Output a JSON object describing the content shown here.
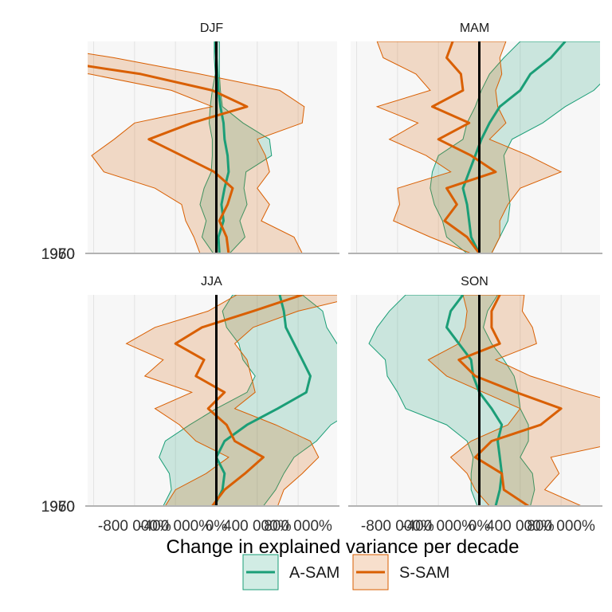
{
  "chart_data": {
    "type": "area",
    "xlabel": "Change in explained variance per decade",
    "ylabel": "",
    "xlim": [
      -800,
      800
    ],
    "ylim": [
      1950,
      2015
    ],
    "x_tick_values": [
      -800,
      -400,
      0,
      400,
      800
    ],
    "x_tick_labels": [
      "-800 000%",
      "-400 000%",
      "0%",
      "400 000%",
      "800 000%"
    ],
    "y_tick_values": [
      1950,
      1960,
      1970
    ],
    "y_tick_labels": [
      "1950",
      "1960",
      "1970"
    ],
    "grid": true,
    "legend_position": "bottom",
    "colors": {
      "A-SAM": "#1b9e77",
      "S-SAM": "#d95f02",
      "zero_line": "#000000",
      "panel_bg": "#f7f7f7",
      "grid": "#e3e3e3",
      "axis_line": "#b3b3b3"
    },
    "legend": [
      {
        "name": "A-SAM",
        "color": "#1b9e77"
      },
      {
        "name": "S-SAM",
        "color": "#d95f02"
      }
    ],
    "panels": [
      {
        "title": "DJF",
        "series": [
          {
            "name": "A-SAM",
            "years": [
              1950,
              1955,
              1960,
              1965,
              1970,
              1975,
              1980,
              1985,
              1990,
              1995,
              2000,
              2005,
              2010,
              2015
            ],
            "mid": [
              15,
              10,
              35,
              25,
              40,
              60,
              55,
              40,
              35,
              20,
              10,
              5,
              0,
              -5
            ],
            "lower": [
              -15,
              -70,
              -50,
              -80,
              -60,
              -25,
              -20,
              -20,
              -35,
              -30,
              -20,
              -5,
              -10,
              -10
            ],
            "upper": [
              65,
              140,
              115,
              150,
              135,
              145,
              270,
              260,
              130,
              30,
              20,
              15,
              15,
              15
            ]
          },
          {
            "name": "S-SAM",
            "years": [
              1950,
              1955,
              1960,
              1965,
              1970,
              1975,
              1980,
              1985,
              1990,
              1995,
              2000,
              2005,
              2010,
              2015
            ],
            "mid": [
              60,
              50,
              15,
              55,
              80,
              -10,
              -170,
              -330,
              -120,
              150,
              -20,
              -370,
              -900,
              -1300
            ],
            "lower": [
              -80,
              -110,
              -150,
              -170,
              -300,
              -550,
              -610,
              -500,
              -400,
              -20,
              -220,
              -620,
              -1200,
              -1600
            ],
            "upper": [
              420,
              380,
              220,
              260,
              200,
              260,
              240,
              200,
              420,
              430,
              310,
              -80,
              -500,
              -1000
            ]
          }
        ]
      },
      {
        "title": "MAM",
        "series": [
          {
            "name": "A-SAM",
            "years": [
              1950,
              1955,
              1960,
              1965,
              1970,
              1975,
              1980,
              1985,
              1990,
              1995,
              2000,
              2005,
              2010,
              2015
            ],
            "mid": [
              0,
              -40,
              -50,
              -60,
              -80,
              -50,
              -20,
              10,
              50,
              100,
              200,
              250,
              350,
              420
            ],
            "lower": [
              -60,
              -160,
              -180,
              -220,
              -240,
              -230,
              -200,
              -80,
              -60,
              -20,
              10,
              50,
              120,
              200
            ],
            "upper": [
              60,
              100,
              140,
              150,
              140,
              130,
              120,
              160,
              310,
              420,
              560,
              640,
              720,
              800
            ]
          },
          {
            "name": "S-SAM",
            "years": [
              1950,
              1955,
              1960,
              1965,
              1970,
              1975,
              1980,
              1985,
              1990,
              1995,
              2000,
              2005,
              2010,
              2015
            ],
            "mid": [
              0,
              -60,
              -170,
              -110,
              -160,
              80,
              -40,
              -200,
              -50,
              -230,
              -80,
              -90,
              -160,
              -130
            ],
            "lower": [
              -40,
              -240,
              -420,
              -390,
              -400,
              -140,
              -260,
              -440,
              -300,
              -500,
              -240,
              -310,
              -470,
              -500
            ],
            "upper": [
              60,
              100,
              100,
              140,
              200,
              400,
              240,
              50,
              130,
              90,
              80,
              110,
              100,
              130
            ]
          }
        ]
      },
      {
        "title": "JJA",
        "series": [
          {
            "name": "A-SAM",
            "years": [
              1950,
              1955,
              1960,
              1965,
              1970,
              1975,
              1980,
              1985,
              1990,
              1995,
              2000,
              2005,
              2010,
              2015
            ],
            "mid": [
              -10,
              30,
              40,
              0,
              40,
              150,
              300,
              440,
              460,
              420,
              380,
              340,
              330,
              310
            ],
            "lower": [
              -260,
              -220,
              -230,
              -280,
              -250,
              -130,
              0,
              150,
              190,
              130,
              110,
              50,
              30,
              80
            ],
            "upper": [
              230,
              290,
              330,
              380,
              490,
              560,
              690,
              800,
              710,
              660,
              590,
              540,
              520,
              420
            ]
          },
          {
            "name": "S-SAM",
            "years": [
              1950,
              1955,
              1960,
              1965,
              1970,
              1975,
              1980,
              1985,
              1990,
              1995,
              2000,
              2005,
              2010,
              2015
            ],
            "mid": [
              -20,
              40,
              140,
              230,
              90,
              50,
              -40,
              40,
              -100,
              -60,
              -200,
              -70,
              180,
              420
            ],
            "lower": [
              -250,
              -200,
              -50,
              60,
              -100,
              -180,
              -300,
              -120,
              -350,
              -260,
              -440,
              -300,
              -40,
              100
            ],
            "upper": [
              300,
              330,
              420,
              500,
              460,
              290,
              90,
              190,
              170,
              150,
              90,
              180,
              400,
              730
            ]
          }
        ]
      },
      {
        "title": "SON",
        "series": [
          {
            "name": "A-SAM",
            "years": [
              1950,
              1955,
              1960,
              1965,
              1970,
              1975,
              1980,
              1985,
              1990,
              1995,
              2000,
              2005,
              2010,
              2015
            ],
            "mid": [
              80,
              100,
              110,
              100,
              90,
              110,
              60,
              0,
              -30,
              -40,
              -100,
              -160,
              -140,
              -80
            ],
            "lower": [
              -10,
              -40,
              -40,
              -30,
              -60,
              -160,
              -360,
              -400,
              -450,
              -460,
              -540,
              -500,
              -440,
              -360
            ],
            "upper": [
              250,
              270,
              260,
              200,
              240,
              240,
              200,
              190,
              170,
              120,
              60,
              20,
              40,
              90
            ]
          },
          {
            "name": "S-SAM",
            "years": [
              1950,
              1955,
              1960,
              1965,
              1970,
              1975,
              1980,
              1985,
              1990,
              1995,
              2000,
              2005,
              2010,
              2015
            ],
            "mid": [
              240,
              120,
              110,
              -20,
              60,
              300,
              400,
              180,
              -20,
              -100,
              100,
              60,
              60,
              100
            ],
            "lower": [
              50,
              -20,
              -60,
              -140,
              -40,
              140,
              200,
              20,
              -160,
              -250,
              -100,
              -70,
              -60,
              -80
            ],
            "upper": [
              500,
              320,
              390,
              350,
              720,
              830,
              780,
              500,
              250,
              80,
              280,
              260,
              210,
              220
            ]
          }
        ]
      }
    ]
  }
}
